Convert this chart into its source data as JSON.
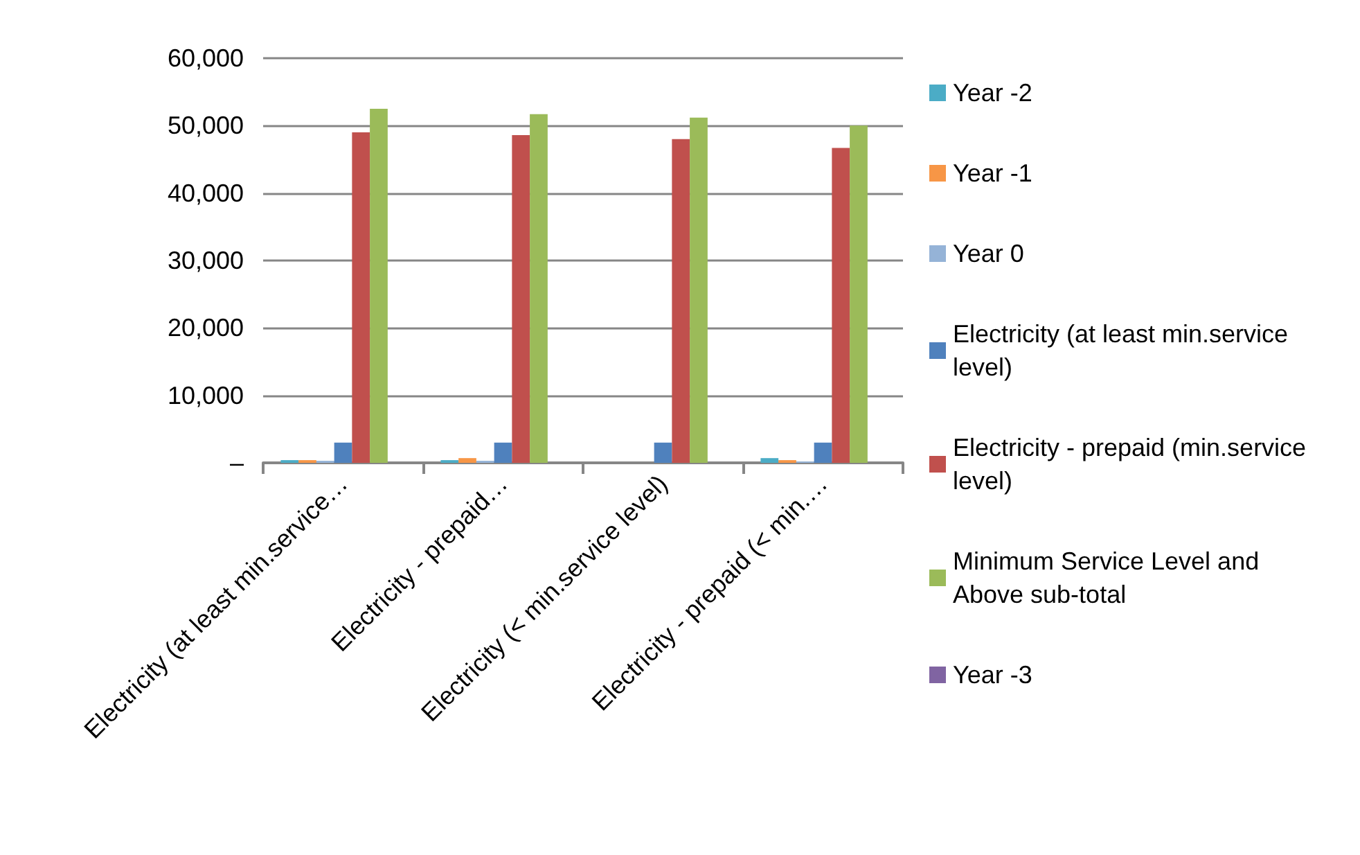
{
  "chart_data": {
    "type": "bar",
    "categories": [
      "Electricity (at least min.service…",
      "Electricity - prepaid…",
      "Electricity (< min.service level)",
      "Electricity - prepaid (< min.…"
    ],
    "series": [
      {
        "name": "Year -2",
        "color": "#4bacc6",
        "values": [
          400,
          400,
          0,
          700
        ]
      },
      {
        "name": "Year -1",
        "color": "#f79646",
        "values": [
          400,
          700,
          0,
          400
        ]
      },
      {
        "name": "Year 0",
        "color": "#95b3d7",
        "values": [
          300,
          300,
          0,
          200
        ]
      },
      {
        "name": "Electricity (at least min.service level)",
        "color": "#4f81bd",
        "values": [
          3000,
          3000,
          3000,
          3000
        ]
      },
      {
        "name": "Electricity - prepaid (min.service level)",
        "color": "#c0504d",
        "values": [
          49000,
          48600,
          48000,
          46700
        ]
      },
      {
        "name": "Minimum Service Level and Above sub-total",
        "color": "#9bbb59",
        "values": [
          52500,
          51700,
          51200,
          50000
        ]
      },
      {
        "name": "Year -3",
        "color": "#8064a2",
        "values": [
          0,
          0,
          0,
          0
        ]
      }
    ],
    "ylim": [
      0,
      60000
    ],
    "yticks": [
      {
        "value": 0,
        "label": "–"
      },
      {
        "value": 10000,
        "label": "10,000"
      },
      {
        "value": 20000,
        "label": "20,000"
      },
      {
        "value": 30000,
        "label": "30,000"
      },
      {
        "value": 40000,
        "label": "40,000"
      },
      {
        "value": 50000,
        "label": "50,000"
      },
      {
        "value": 60000,
        "label": "60,000"
      }
    ],
    "grid": "y",
    "legend": "right"
  }
}
